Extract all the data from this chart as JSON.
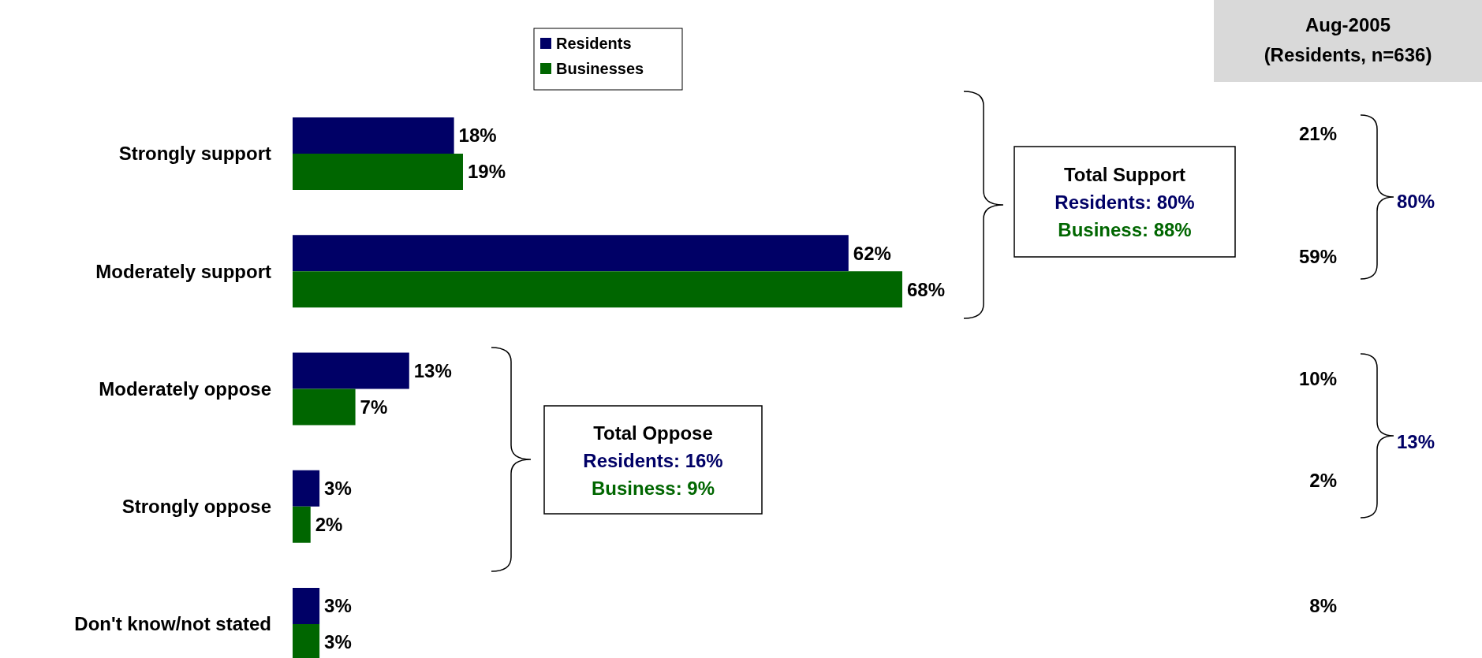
{
  "chart_data": {
    "type": "bar",
    "orientation": "horizontal",
    "categories": [
      "Strongly support",
      "Moderately support",
      "Moderately oppose",
      "Strongly oppose",
      "Don't know/not stated"
    ],
    "series": [
      {
        "name": "Residents",
        "color": "#000066",
        "values": [
          18,
          62,
          13,
          3,
          3
        ],
        "value_labels": [
          "18%",
          "62%",
          "13%",
          "3%",
          "3%"
        ]
      },
      {
        "name": "Businesses",
        "color": "#006600",
        "values": [
          19,
          68,
          7,
          2,
          3
        ],
        "value_labels": [
          "19%",
          "68%",
          "7%",
          "2%",
          "3%"
        ]
      }
    ],
    "legend": "top",
    "annotations": [
      "Total Support",
      "Residents: 80%",
      "Business: 88%",
      "Total Oppose",
      "Residents: 16%",
      "Business: 9%",
      "Aug-2005",
      "(Residents, n=636)",
      "21%",
      "59%",
      "80%",
      "10%",
      "2%",
      "13%",
      "8%"
    ]
  }
}
